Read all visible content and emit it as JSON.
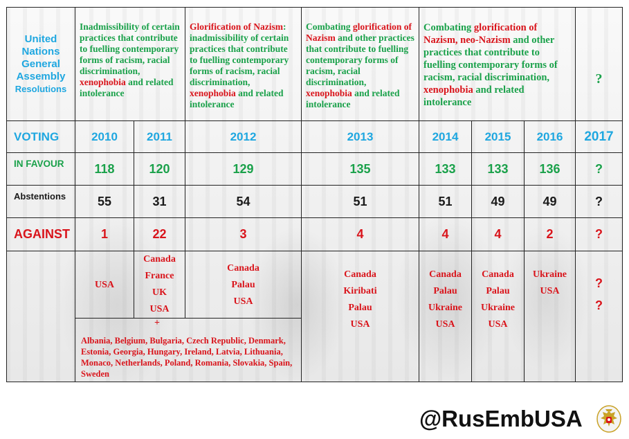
{
  "header": {
    "col0": [
      "United",
      "Nations",
      "General",
      "Assembly",
      "Resolutions"
    ],
    "res2010_2011": {
      "parts": [
        {
          "t": "Inadmissibility of certain practices that contribute to fuelling contemporary forms of racism, racial discrimination, ",
          "c": "green"
        },
        {
          "t": "xenophobia",
          "c": "red"
        },
        {
          "t": " and related intolerance",
          "c": "green"
        }
      ]
    },
    "res2012": {
      "parts": [
        {
          "t": "Glorification of Nazism",
          "c": "red"
        },
        {
          "t": ": inadmissibility of certain practices that contribute to fuelling contemporary forms of racism, racial discrimination, ",
          "c": "green"
        },
        {
          "t": "xenophobia",
          "c": "red"
        },
        {
          "t": " and related intolerance",
          "c": "green"
        }
      ]
    },
    "res2013": {
      "parts": [
        {
          "t": "Combating ",
          "c": "green"
        },
        {
          "t": "glorification of Nazism",
          "c": "red"
        },
        {
          "t": " and other practices that contribute to fuelling contemporary forms of racism, racial discrimination, ",
          "c": "green"
        },
        {
          "t": "xenophobia",
          "c": "red"
        },
        {
          "t": " and related intolerance",
          "c": "green"
        }
      ]
    },
    "res2014_2016": {
      "parts": [
        {
          "t": "Combating ",
          "c": "green"
        },
        {
          "t": "glorification of Nazism, neo-Nazism",
          "c": "red"
        },
        {
          "t": " and other practices that contribute to fuelling contemporary forms of racism, racial discrimination, ",
          "c": "green"
        },
        {
          "t": "xenophobia",
          "c": "red"
        },
        {
          "t": " and related intolerance",
          "c": "green"
        }
      ]
    },
    "res2017": "?"
  },
  "rows": {
    "voting_label": "VOTING",
    "years": [
      "2010",
      "2011",
      "2012",
      "2013",
      "2014",
      "2015",
      "2016",
      "2017"
    ],
    "in_favour_label": "IN FAVOUR",
    "in_favour": [
      "118",
      "120",
      "129",
      "135",
      "133",
      "133",
      "136",
      "?"
    ],
    "abstentions_label": "Abstentions",
    "abstentions": [
      "55",
      "31",
      "54",
      "51",
      "51",
      "49",
      "49",
      "?"
    ],
    "against_label": "AGAINST",
    "against": [
      "1",
      "22",
      "3",
      "4",
      "4",
      "4",
      "2",
      "?"
    ]
  },
  "against_countries": {
    "c2010": [
      "USA"
    ],
    "c2011": [
      "Canada",
      "France",
      "UK",
      "USA"
    ],
    "c2012": [
      "Canada",
      "Palau",
      "USA"
    ],
    "c2013": [
      "Canada",
      "Kiribati",
      "Palau",
      "USA"
    ],
    "c2014": [
      "Canada",
      "Palau",
      "Ukraine",
      "USA"
    ],
    "c2015": [
      "Canada",
      "Palau",
      "Ukraine",
      "USA"
    ],
    "c2016": [
      "Ukraine",
      "USA"
    ],
    "c2017": [
      "?",
      "?"
    ],
    "plus": "+",
    "eu_list": "Albania, Belgium, Bulgaria, Czech Republic, Denmark, Estonia, Georgia, Hungary, Ireland, Latvia, Lithuania, Monaco, Netherlands, Poland, Romania, Slovakia, Spain, Sweden"
  },
  "footer": {
    "handle": "@RusEmbUSA",
    "emblem_icon": "russian-coat-of-arms-icon"
  },
  "colors": {
    "blue": "#1fa7e0",
    "green": "#1aa14a",
    "red": "#d9141b"
  }
}
